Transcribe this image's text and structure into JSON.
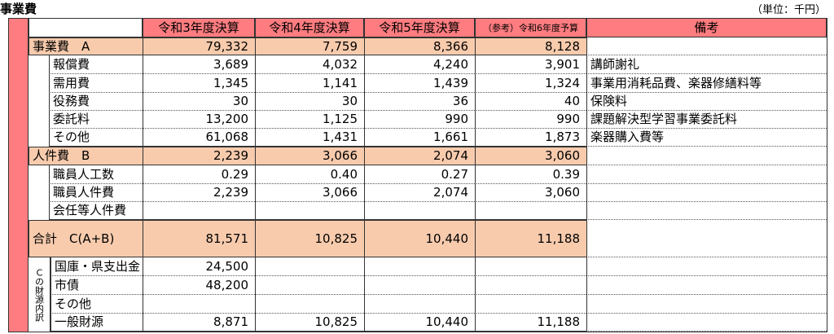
{
  "header": {
    "title": "事業費",
    "unit": "（単位：千円）"
  },
  "table": {
    "columns": [
      "令和3年度決算",
      "令和4年度決算",
      "令和5年度決算",
      "（参考）令和6年度予算",
      "備考"
    ],
    "rows": [
      [
        "事業費　A",
        "79,332",
        "7,759",
        "8,366",
        "8,128",
        null
      ],
      [
        "報償費",
        "3,689",
        "4,032",
        "4,240",
        "3,901",
        "講師謝礼"
      ],
      [
        "需用費",
        "1,345",
        "1,141",
        "1,439",
        "1,324",
        "事業用消耗品費、楽器修繕料等"
      ],
      [
        "役務費",
        "30",
        "30",
        "36",
        "40",
        "保険料"
      ],
      [
        "委託料",
        "13,200",
        "1,125",
        "990",
        "990",
        "課題解決型学習事業委託料"
      ],
      [
        "その他",
        "61,068",
        "1,431",
        "1,661",
        "1,873",
        "楽器購入費等"
      ],
      [
        "人件費　B",
        "2,239",
        "3,066",
        "2,074",
        "3,060",
        null
      ],
      [
        "職員人工数",
        "0.29",
        "0.40",
        "0.27",
        "0.39",
        null
      ],
      [
        "職員人件費",
        "2,239",
        "3,066",
        "2,074",
        "3,060",
        null
      ],
      [
        "会任等人件費",
        null,
        null,
        null,
        null,
        null
      ],
      [
        "合計　C(A+B)",
        "81,571",
        "10,825",
        "10,440",
        "11,188",
        null
      ],
      [
        "国庫・県支出金",
        "24,500",
        null,
        null,
        null,
        null
      ],
      [
        "市債",
        "48,200",
        null,
        null,
        null,
        null
      ],
      [
        "その他",
        null,
        null,
        null,
        null,
        null
      ],
      [
        "一般財源",
        "8,871",
        "10,825",
        "10,440",
        "11,188",
        null
      ]
    ],
    "source_label": "Ｃの財源内訳"
  }
}
